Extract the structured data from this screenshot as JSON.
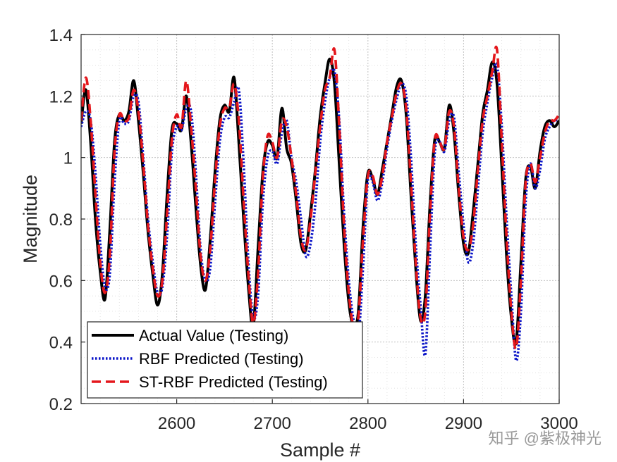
{
  "chart_data": {
    "type": "line",
    "title": "",
    "xlabel": "Sample #",
    "ylabel": "Magnitude",
    "xlim": [
      2500,
      3000
    ],
    "ylim": [
      0.2,
      1.4
    ],
    "xticks": [
      2600,
      2700,
      2800,
      2900,
      3000
    ],
    "yticks": [
      0.2,
      0.4,
      0.6,
      0.8,
      1.0,
      1.2,
      1.4
    ],
    "xtick_labels": [
      "2600",
      "2700",
      "2800",
      "2900",
      "3000"
    ],
    "ytick_labels": [
      "0.2",
      "0.4",
      "0.6",
      "0.8",
      "1",
      "1.2",
      "1.4"
    ],
    "grid": true,
    "minor_grid": true,
    "legend_position": "bottom-left",
    "series": [
      {
        "name": "Actual Value (Testing)",
        "color": "#000000",
        "style": "solid",
        "x": [
          2500,
          2505,
          2510,
          2515,
          2520,
          2525,
          2530,
          2535,
          2540,
          2545,
          2550,
          2555,
          2560,
          2565,
          2570,
          2575,
          2580,
          2585,
          2590,
          2595,
          2600,
          2605,
          2610,
          2615,
          2620,
          2625,
          2630,
          2635,
          2640,
          2645,
          2650,
          2655,
          2660,
          2665,
          2670,
          2675,
          2680,
          2685,
          2690,
          2695,
          2700,
          2705,
          2710,
          2715,
          2720,
          2725,
          2730,
          2735,
          2740,
          2745,
          2750,
          2755,
          2760,
          2765,
          2770,
          2775,
          2780,
          2785,
          2790,
          2795,
          2800,
          2805,
          2810,
          2815,
          2820,
          2825,
          2830,
          2835,
          2840,
          2845,
          2850,
          2855,
          2860,
          2865,
          2870,
          2875,
          2880,
          2885,
          2890,
          2895,
          2900,
          2905,
          2910,
          2915,
          2920,
          2925,
          2930,
          2935,
          2940,
          2945,
          2950,
          2955,
          2960,
          2965,
          2970,
          2975,
          2980,
          2985,
          2990,
          2995,
          3000
        ],
        "y": [
          1.11,
          1.22,
          1.05,
          0.8,
          0.63,
          0.54,
          0.76,
          1.05,
          1.14,
          1.12,
          1.15,
          1.25,
          1.12,
          0.95,
          0.76,
          0.62,
          0.52,
          0.62,
          0.88,
          1.09,
          1.11,
          1.09,
          1.2,
          1.05,
          0.84,
          0.65,
          0.57,
          0.73,
          0.95,
          1.12,
          1.17,
          1.15,
          1.26,
          1.05,
          0.8,
          0.58,
          0.45,
          0.7,
          0.95,
          1.05,
          1.04,
          1.0,
          1.16,
          1.03,
          0.98,
          0.86,
          0.72,
          0.7,
          0.82,
          0.96,
          1.13,
          1.24,
          1.32,
          1.24,
          0.98,
          0.72,
          0.53,
          0.45,
          0.5,
          0.78,
          0.95,
          0.93,
          0.88,
          0.96,
          1.05,
          1.14,
          1.23,
          1.25,
          1.14,
          0.88,
          0.64,
          0.47,
          0.55,
          0.85,
          1.06,
          1.05,
          1.03,
          1.17,
          1.08,
          0.88,
          0.72,
          0.69,
          0.82,
          0.98,
          1.14,
          1.22,
          1.31,
          1.24,
          0.97,
          0.68,
          0.48,
          0.4,
          0.66,
          0.93,
          0.97,
          0.9,
          1.02,
          1.1,
          1.12,
          1.1,
          1.12
        ]
      },
      {
        "name": "RBF Predicted (Testing)",
        "color": "#0a14c8",
        "style": "dotted",
        "x": [
          2500,
          2505,
          2510,
          2515,
          2520,
          2525,
          2530,
          2535,
          2540,
          2545,
          2550,
          2555,
          2560,
          2565,
          2570,
          2575,
          2580,
          2585,
          2590,
          2595,
          2600,
          2605,
          2610,
          2615,
          2620,
          2625,
          2630,
          2635,
          2640,
          2645,
          2650,
          2655,
          2660,
          2665,
          2670,
          2675,
          2680,
          2685,
          2690,
          2695,
          2700,
          2705,
          2710,
          2715,
          2720,
          2725,
          2730,
          2735,
          2740,
          2745,
          2750,
          2755,
          2760,
          2765,
          2770,
          2775,
          2780,
          2785,
          2790,
          2795,
          2800,
          2805,
          2810,
          2815,
          2820,
          2825,
          2830,
          2835,
          2840,
          2845,
          2850,
          2855,
          2860,
          2865,
          2870,
          2875,
          2880,
          2885,
          2890,
          2895,
          2900,
          2905,
          2910,
          2915,
          2920,
          2925,
          2930,
          2935,
          2940,
          2945,
          2950,
          2955,
          2960,
          2965,
          2970,
          2975,
          2980,
          2985,
          2990,
          2995,
          3000
        ],
        "y": [
          1.1,
          1.15,
          1.12,
          0.95,
          0.72,
          0.58,
          0.62,
          0.92,
          1.12,
          1.11,
          1.12,
          1.2,
          1.18,
          1.0,
          0.8,
          0.66,
          0.56,
          0.58,
          0.75,
          1.02,
          1.1,
          1.09,
          1.16,
          1.15,
          0.95,
          0.7,
          0.6,
          0.64,
          0.85,
          1.05,
          1.13,
          1.13,
          1.18,
          1.22,
          0.98,
          0.66,
          0.48,
          0.55,
          0.85,
          1.0,
          1.02,
          0.98,
          1.08,
          1.12,
          1.0,
          0.92,
          0.8,
          0.68,
          0.72,
          0.85,
          1.05,
          1.18,
          1.26,
          1.28,
          1.12,
          0.82,
          0.6,
          0.47,
          0.42,
          0.65,
          0.93,
          0.92,
          0.86,
          0.92,
          1.03,
          1.12,
          1.19,
          1.24,
          1.2,
          1.0,
          0.72,
          0.52,
          0.36,
          0.7,
          1.02,
          1.05,
          1.02,
          1.12,
          1.13,
          0.95,
          0.78,
          0.66,
          0.72,
          0.9,
          1.08,
          1.18,
          1.26,
          1.3,
          1.1,
          0.8,
          0.55,
          0.34,
          0.5,
          0.86,
          0.98,
          0.9,
          0.96,
          1.06,
          1.1,
          1.12,
          1.12
        ]
      },
      {
        "name": "ST-RBF Predicted (Testing)",
        "color": "#e4171c",
        "style": "dashed",
        "x": [
          2500,
          2505,
          2510,
          2515,
          2520,
          2525,
          2530,
          2535,
          2540,
          2545,
          2550,
          2555,
          2560,
          2565,
          2570,
          2575,
          2580,
          2585,
          2590,
          2595,
          2600,
          2605,
          2610,
          2615,
          2620,
          2625,
          2630,
          2635,
          2640,
          2645,
          2650,
          2655,
          2660,
          2665,
          2670,
          2675,
          2680,
          2685,
          2690,
          2695,
          2700,
          2705,
          2710,
          2715,
          2720,
          2725,
          2730,
          2735,
          2740,
          2745,
          2750,
          2755,
          2760,
          2765,
          2770,
          2775,
          2780,
          2785,
          2790,
          2795,
          2800,
          2805,
          2810,
          2815,
          2820,
          2825,
          2830,
          2835,
          2840,
          2845,
          2850,
          2855,
          2860,
          2865,
          2870,
          2875,
          2880,
          2885,
          2890,
          2895,
          2900,
          2905,
          2910,
          2915,
          2920,
          2925,
          2930,
          2935,
          2940,
          2945,
          2950,
          2955,
          2960,
          2965,
          2970,
          2975,
          2980,
          2985,
          2990,
          2995,
          3000
        ],
        "y": [
          1.12,
          1.26,
          1.12,
          0.88,
          0.66,
          0.56,
          0.68,
          1.02,
          1.14,
          1.12,
          1.13,
          1.22,
          1.15,
          0.98,
          0.78,
          0.64,
          0.55,
          0.6,
          0.82,
          1.06,
          1.14,
          1.1,
          1.25,
          1.1,
          0.9,
          0.68,
          0.6,
          0.7,
          0.92,
          1.1,
          1.16,
          1.16,
          1.24,
          1.12,
          0.86,
          0.62,
          0.46,
          0.62,
          0.93,
          1.07,
          1.05,
          1.0,
          1.12,
          1.1,
          1.0,
          0.88,
          0.74,
          0.7,
          0.8,
          0.95,
          1.1,
          1.22,
          1.26,
          1.35,
          1.1,
          0.78,
          0.56,
          0.45,
          0.48,
          0.74,
          0.94,
          0.94,
          0.88,
          0.94,
          1.05,
          1.13,
          1.21,
          1.24,
          1.16,
          0.92,
          0.66,
          0.48,
          0.5,
          0.82,
          1.06,
          1.05,
          1.03,
          1.15,
          1.1,
          0.9,
          0.74,
          0.7,
          0.78,
          0.96,
          1.12,
          1.2,
          1.28,
          1.35,
          1.05,
          0.74,
          0.5,
          0.38,
          0.6,
          0.92,
          0.98,
          0.92,
          1.0,
          1.08,
          1.12,
          1.12,
          1.14
        ]
      }
    ]
  },
  "watermark": {
    "text": "知乎 @紫极神光"
  }
}
